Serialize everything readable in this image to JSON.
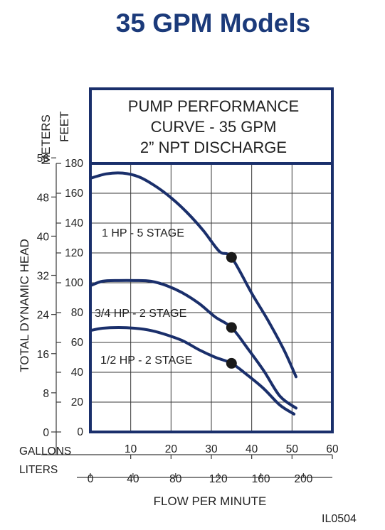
{
  "page": {
    "title": "35 GPM Models",
    "code": "IL0504"
  },
  "colors": {
    "title": "#1b3a7a",
    "frame": "#1a2f6b",
    "curve": "#1a2f6b",
    "grid": "#3a3a3a",
    "text": "#222222",
    "point": "#1a1a1a"
  },
  "chart_data": {
    "type": "line",
    "title_lines": [
      "PUMP PERFORMANCE",
      "CURVE - 35 GPM",
      "2” NPT DISCHARGE"
    ],
    "xlabel": "FLOW PER MINUTE",
    "ylabel": "TOTAL DYNAMIC HEAD",
    "x_units": [
      "GALLONS",
      "LITERS"
    ],
    "y_units": [
      "METERS",
      "FEET"
    ],
    "xlim": [
      0,
      60
    ],
    "ylim": [
      0,
      180
    ],
    "grid": true,
    "gallons_ticks": [
      "10",
      "20",
      "30",
      "40",
      "50",
      "60"
    ],
    "liters_ticks": [
      "0",
      "40",
      "80",
      "120",
      "160",
      "200"
    ],
    "feet_ticks": [
      "0",
      "20",
      "40",
      "60",
      "80",
      "100",
      "120",
      "140",
      "160",
      "180"
    ],
    "meters_ticks": [
      "8",
      "16",
      "24",
      "32",
      "40",
      "48",
      "56"
    ],
    "series": [
      {
        "name": "1 HP - 5 STAGE",
        "x": [
          0,
          4,
          8,
          12,
          16,
          20,
          24,
          28,
          32,
          35,
          40,
          44,
          48,
          51
        ],
        "y": [
          170,
          173,
          173.5,
          171,
          165,
          157,
          147,
          135,
          121,
          117,
          93,
          75,
          55,
          37
        ],
        "operating_point": {
          "x": 35,
          "y": 117
        }
      },
      {
        "name": "3/4 HP - 2 STAGE",
        "x": [
          0,
          3,
          7,
          11,
          15,
          19,
          23,
          27,
          31,
          35,
          39,
          43,
          47,
          51
        ],
        "y": [
          98,
          101,
          101.5,
          101.5,
          101,
          98,
          93,
          86,
          77,
          70,
          56,
          41,
          24,
          16
        ],
        "operating_point": {
          "x": 35,
          "y": 70
        }
      },
      {
        "name": "1/2 HP - 2 STAGE",
        "x": [
          0,
          3,
          7,
          11,
          15,
          19,
          23,
          27,
          31,
          35,
          39,
          43,
          47,
          50.5
        ],
        "y": [
          68,
          69.5,
          70,
          69.5,
          68,
          65,
          61,
          55,
          50,
          46,
          38,
          29,
          18,
          12
        ],
        "operating_point": {
          "x": 35,
          "y": 46
        }
      }
    ]
  }
}
